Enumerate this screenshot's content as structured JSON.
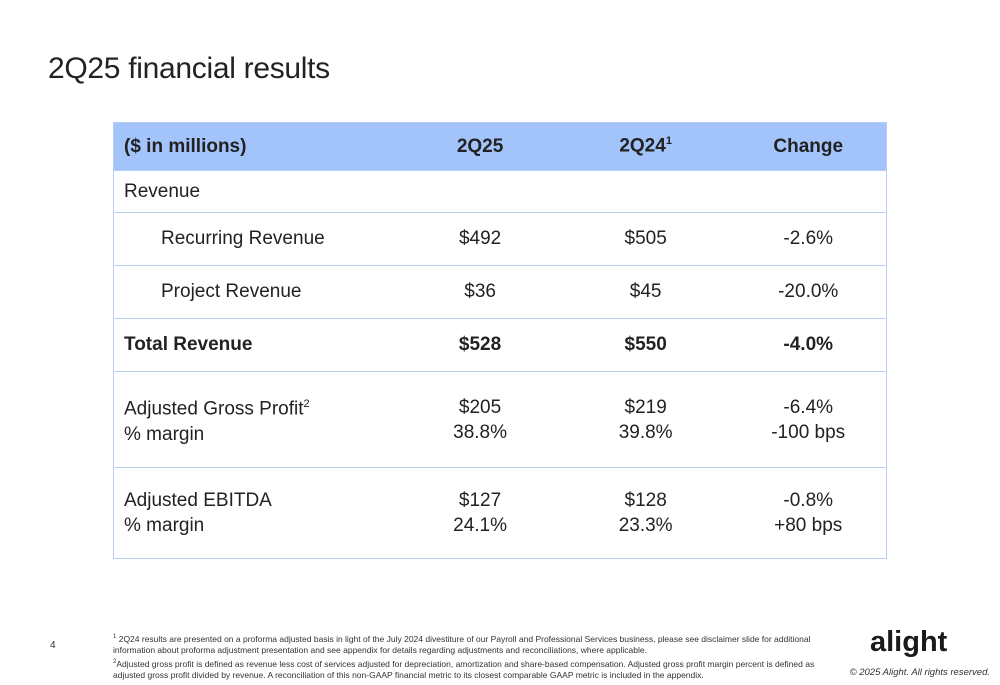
{
  "title": "2Q25 financial results",
  "table": {
    "header": {
      "label": "($ in millions)",
      "col1": "2Q25",
      "col2": "2Q24",
      "col2_sup": "1",
      "col3": "Change"
    },
    "revenue_label": "Revenue",
    "rows": [
      {
        "label": "Recurring Revenue",
        "v1": "$492",
        "v2": "$505",
        "v3": "-2.6%"
      },
      {
        "label": "Project Revenue",
        "v1": "$36",
        "v2": "$45",
        "v3": "-20.0%"
      },
      {
        "label": "Total Revenue",
        "v1": "$528",
        "v2": "$550",
        "v3": "-4.0%"
      }
    ],
    "gross_profit": {
      "label": "Adjusted Gross Profit",
      "label_sup": "2",
      "margin_label": "% margin",
      "v1": "$205",
      "m1": "38.8%",
      "v2": "$219",
      "m2": "39.8%",
      "v3": "-6.4%",
      "m3": "-100 bps"
    },
    "ebitda": {
      "label": "Adjusted EBITDA",
      "margin_label": "% margin",
      "v1": "$127",
      "m1": "24.1%",
      "v2": "$128",
      "m2": "23.3%",
      "v3": "-0.8%",
      "m3": "+80 bps"
    }
  },
  "page_number": "4",
  "footnotes": [
    {
      "sup": "1",
      "text": "2Q24 results are presented on a proforma adjusted basis in light of the July 2024 divestiture of our Payroll and Professional Services business, please see disclaimer slide for additional information about proforma adjustment presentation and see appendix for details regarding adjustments and reconciliations, where applicable."
    },
    {
      "sup": "2",
      "text": "Adjusted gross profit is defined as revenue less cost of services adjusted for depreciation, amortization and share-based compensation. Adjusted gross profit margin percent is defined as adjusted gross profit divided by revenue. A reconciliation of this non-GAAP financial metric to its closest comparable GAAP metric is included in the appendix."
    }
  ],
  "logo_text": "alight",
  "copyright": "© 2025 Alight. All rights reserved.",
  "colors": {
    "header_bg": "#a3c3fb",
    "border": "#b8cdf2"
  }
}
